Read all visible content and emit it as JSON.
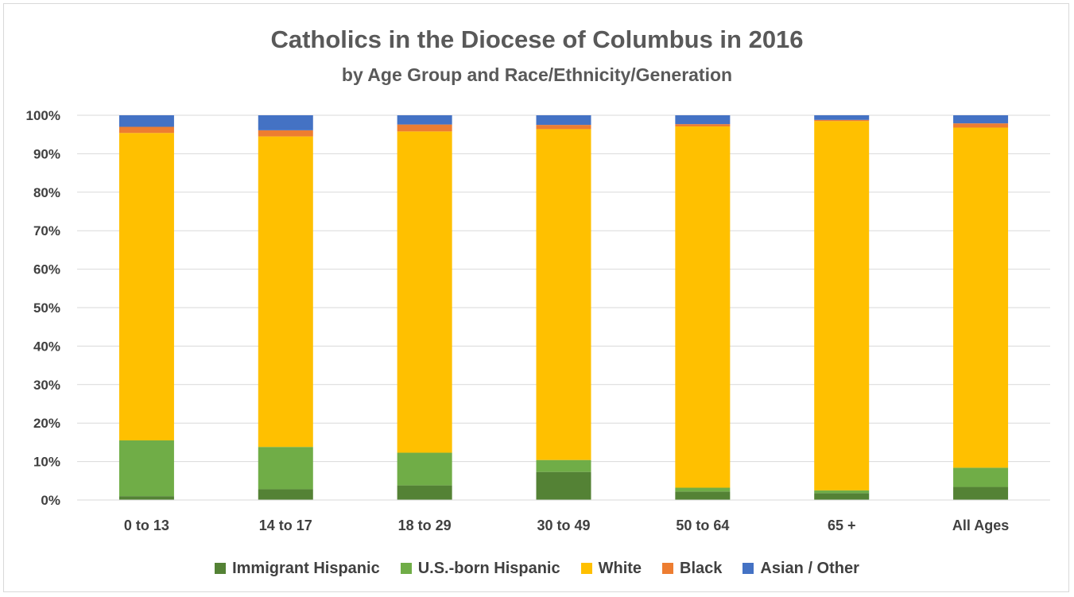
{
  "chart_data": {
    "type": "bar",
    "stacked": true,
    "percent": true,
    "title": "Catholics in the Diocese of Columbus in 2016",
    "subtitle": "by Age Group and Race/Ethnicity/Generation",
    "categories": [
      "0 to 13",
      "14 to 17",
      "18 to 29",
      "30 to 49",
      "50 to 64",
      "65 +",
      "All Ages"
    ],
    "yticks": [
      "0%",
      "10%",
      "20%",
      "30%",
      "40%",
      "50%",
      "60%",
      "70%",
      "80%",
      "90%",
      "100%"
    ],
    "ylim": [
      0,
      100
    ],
    "grid": true,
    "legend_position": "bottom",
    "series": [
      {
        "name": "Immigrant Hispanic",
        "color": "#548235",
        "values": [
          1.0,
          2.8,
          3.8,
          7.3,
          2.2,
          1.8,
          3.4
        ]
      },
      {
        "name": "U.S.-born Hispanic",
        "color": "#70ad47",
        "values": [
          14.5,
          11.0,
          8.5,
          3.1,
          1.0,
          0.7,
          5.0
        ]
      },
      {
        "name": "White",
        "color": "#ffc000",
        "values": [
          79.9,
          80.7,
          83.5,
          86.0,
          93.9,
          96.0,
          88.4
        ]
      },
      {
        "name": "Black",
        "color": "#ed7d31",
        "values": [
          1.6,
          1.6,
          1.8,
          1.1,
          0.6,
          0.3,
          1.1
        ]
      },
      {
        "name": "Asian / Other",
        "color": "#4472c4",
        "values": [
          3.0,
          3.9,
          2.4,
          2.5,
          2.3,
          1.2,
          2.1
        ]
      }
    ]
  }
}
